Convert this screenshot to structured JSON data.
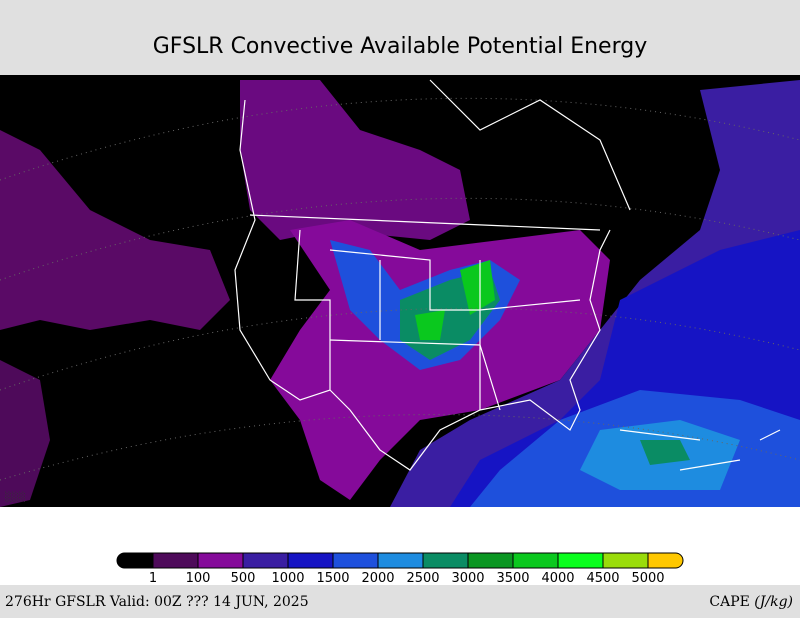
{
  "header": {
    "title": "GFSLR Convective Available Potential Energy"
  },
  "colorbar": {
    "colors": [
      "#000000",
      "#4e0a5a",
      "#850a9a",
      "#3a1ea2",
      "#1614c4",
      "#1e50dc",
      "#1e8ce0",
      "#0a8c64",
      "#0a9622",
      "#0ac81e",
      "#0aff1e",
      "#9adc0a",
      "#ffc800"
    ],
    "ticks": [
      1,
      100,
      500,
      1000,
      1500,
      2000,
      2500,
      3000,
      3500,
      4000,
      4500,
      5000
    ]
  },
  "footer": {
    "valid": "276Hr GFSLR Valid: 00Z ??? 14 JUN, 2025",
    "units_label": "CAPE",
    "units": "(J/kg)"
  }
}
